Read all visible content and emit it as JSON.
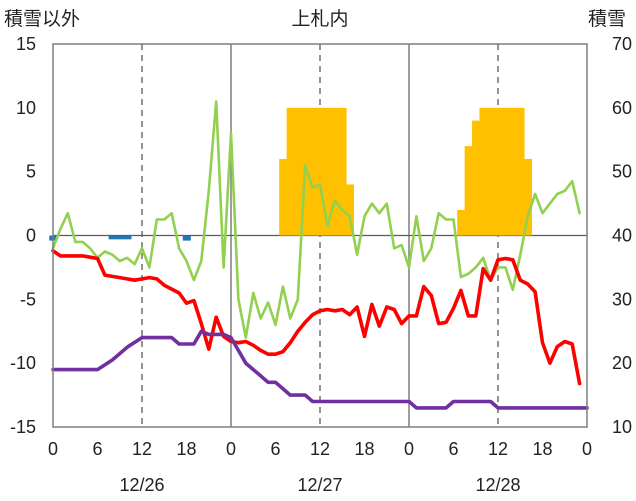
{
  "chart_data": {
    "type": "line",
    "title": "上札内",
    "left_axis": {
      "label": "積雪以外",
      "range": [
        -15,
        15
      ],
      "ticks": [
        -15,
        -10,
        -5,
        0,
        5,
        10,
        15
      ]
    },
    "right_axis": {
      "label": "積雪",
      "range": [
        10,
        70
      ],
      "ticks": [
        10,
        20,
        30,
        40,
        50,
        60,
        70
      ]
    },
    "x_axis": {
      "range_hours": [
        0,
        72
      ],
      "tick_hours": [
        0,
        6,
        12,
        18,
        24,
        30,
        36,
        42,
        48,
        54,
        60,
        66,
        72
      ],
      "tick_labels": [
        "0",
        "6",
        "12",
        "18",
        "0",
        "6",
        "12",
        "18",
        "0",
        "6",
        "12",
        "18",
        "0"
      ],
      "day_labels": [
        {
          "label": "12/26",
          "hour": 12
        },
        {
          "label": "12/27",
          "hour": 36
        },
        {
          "label": "12/28",
          "hour": 60
        }
      ]
    },
    "grid": "dashed vertical lines at hour 12, 36 and 60; solid day separators at hour 24 and 48; solid zero line",
    "series": [
      {
        "color": "#ffc000",
        "kind": "bar",
        "axis": "left",
        "points": [
          [
            0,
            -0.4
          ],
          [
            8,
            -0.3
          ],
          [
            9,
            -0.3
          ],
          [
            10,
            -0.3
          ],
          [
            18,
            -0.4
          ],
          [
            31,
            6
          ],
          [
            32,
            10
          ],
          [
            33,
            10
          ],
          [
            34,
            10
          ],
          [
            35,
            10
          ],
          [
            36,
            10
          ],
          [
            37,
            10
          ],
          [
            38,
            10
          ],
          [
            39,
            10
          ],
          [
            40,
            4
          ],
          [
            55,
            2
          ],
          [
            56,
            7
          ],
          [
            57,
            9
          ],
          [
            58,
            10
          ],
          [
            59,
            10
          ],
          [
            60,
            10
          ],
          [
            61,
            10
          ],
          [
            62,
            10
          ],
          [
            63,
            10
          ],
          [
            64,
            6
          ]
        ]
      },
      {
        "color": "#92d050",
        "kind": "line",
        "axis": "right",
        "points": [
          [
            0,
            38
          ],
          [
            1,
            41
          ],
          [
            2,
            43.5
          ],
          [
            3,
            39
          ],
          [
            4,
            39
          ],
          [
            5,
            38
          ],
          [
            6,
            36.5
          ],
          [
            7,
            37.5
          ],
          [
            8,
            37
          ],
          [
            9,
            36
          ],
          [
            10,
            36.5
          ],
          [
            11,
            35.5
          ],
          [
            12,
            38
          ],
          [
            13,
            35
          ],
          [
            14,
            42.5
          ],
          [
            15,
            42.5
          ],
          [
            16,
            43.5
          ],
          [
            17,
            38
          ],
          [
            18,
            36
          ],
          [
            19,
            33
          ],
          [
            20,
            36
          ],
          [
            21,
            47
          ],
          [
            22,
            61
          ],
          [
            23,
            35
          ],
          [
            24,
            56
          ],
          [
            25,
            30
          ],
          [
            26,
            24
          ],
          [
            27,
            31
          ],
          [
            28,
            27
          ],
          [
            29,
            29.5
          ],
          [
            30,
            26
          ],
          [
            31,
            32
          ],
          [
            32,
            27
          ],
          [
            33,
            30
          ],
          [
            34,
            51
          ],
          [
            35,
            47.5
          ],
          [
            36,
            48
          ],
          [
            37,
            41.5
          ],
          [
            38,
            45.5
          ],
          [
            39,
            44
          ],
          [
            40,
            43
          ],
          [
            41,
            37
          ],
          [
            42,
            43
          ],
          [
            43,
            45
          ],
          [
            44,
            43.5
          ],
          [
            45,
            45
          ],
          [
            46,
            38
          ],
          [
            47,
            38.5
          ],
          [
            48,
            35
          ],
          [
            49,
            43
          ],
          [
            50,
            36
          ],
          [
            51,
            38
          ],
          [
            52,
            43.5
          ],
          [
            53,
            42.5
          ],
          [
            54,
            42.5
          ],
          [
            55,
            33.5
          ],
          [
            56,
            34
          ],
          [
            57,
            35
          ],
          [
            58,
            36.5
          ],
          [
            59,
            33
          ],
          [
            60,
            35
          ],
          [
            61,
            35
          ],
          [
            62,
            31.5
          ],
          [
            63,
            37
          ],
          [
            64,
            43
          ],
          [
            65,
            46.5
          ],
          [
            66,
            43.5
          ],
          [
            67,
            45
          ],
          [
            68,
            46.5
          ],
          [
            69,
            47
          ],
          [
            70,
            48.5
          ],
          [
            71,
            43.5
          ]
        ]
      },
      {
        "color": "#ff0000",
        "kind": "line",
        "axis": "left",
        "points": [
          [
            0,
            -1.2
          ],
          [
            1,
            -1.6
          ],
          [
            2,
            -1.6
          ],
          [
            3,
            -1.6
          ],
          [
            4,
            -1.6
          ],
          [
            5,
            -1.7
          ],
          [
            6,
            -1.8
          ],
          [
            7,
            -3.1
          ],
          [
            8,
            -3.2
          ],
          [
            9,
            -3.3
          ],
          [
            10,
            -3.4
          ],
          [
            11,
            -3.5
          ],
          [
            12,
            -3.4
          ],
          [
            13,
            -3.3
          ],
          [
            14,
            -3.4
          ],
          [
            15,
            -3.9
          ],
          [
            16,
            -4.2
          ],
          [
            17,
            -4.5
          ],
          [
            18,
            -5.3
          ],
          [
            19,
            -5.1
          ],
          [
            20,
            -6.9
          ],
          [
            21,
            -8.9
          ],
          [
            22,
            -6.4
          ],
          [
            23,
            -7.9
          ],
          [
            24,
            -8.3
          ],
          [
            25,
            -8.4
          ],
          [
            26,
            -8.3
          ],
          [
            27,
            -8.6
          ],
          [
            28,
            -9
          ],
          [
            29,
            -9.3
          ],
          [
            30,
            -9.3
          ],
          [
            31,
            -9.1
          ],
          [
            32,
            -8.4
          ],
          [
            33,
            -7.5
          ],
          [
            34,
            -6.8
          ],
          [
            35,
            -6.2
          ],
          [
            36,
            -5.9
          ],
          [
            37,
            -5.8
          ],
          [
            38,
            -5.9
          ],
          [
            39,
            -5.8
          ],
          [
            40,
            -6.2
          ],
          [
            41,
            -5.6
          ],
          [
            42,
            -7.9
          ],
          [
            43,
            -5.4
          ],
          [
            44,
            -7.1
          ],
          [
            45,
            -5.6
          ],
          [
            46,
            -5.8
          ],
          [
            47,
            -6.9
          ],
          [
            48,
            -6.3
          ],
          [
            49,
            -6.3
          ],
          [
            50,
            -4
          ],
          [
            51,
            -4.7
          ],
          [
            52,
            -6.9
          ],
          [
            53,
            -6.8
          ],
          [
            54,
            -5.7
          ],
          [
            55,
            -4.3
          ],
          [
            56,
            -6.3
          ],
          [
            57,
            -6.3
          ],
          [
            58,
            -2.6
          ],
          [
            59,
            -3.5
          ],
          [
            60,
            -1.9
          ],
          [
            61,
            -1.8
          ],
          [
            62,
            -1.9
          ],
          [
            63,
            -3.5
          ],
          [
            64,
            -3.8
          ],
          [
            65,
            -4.4
          ],
          [
            66,
            -8.4
          ],
          [
            67,
            -10
          ],
          [
            68,
            -8.7
          ],
          [
            69,
            -8.3
          ],
          [
            70,
            -8.5
          ],
          [
            71,
            -11.6
          ]
        ]
      },
      {
        "color": "#7030a0",
        "kind": "line",
        "axis": "right",
        "points": [
          [
            0,
            19
          ],
          [
            6,
            19
          ],
          [
            8,
            20.5
          ],
          [
            10,
            22.5
          ],
          [
            12,
            24
          ],
          [
            16,
            24
          ],
          [
            17,
            23
          ],
          [
            19,
            23
          ],
          [
            20,
            25
          ],
          [
            21,
            24.5
          ],
          [
            23,
            24.5
          ],
          [
            24,
            24
          ],
          [
            25,
            22
          ],
          [
            26,
            20
          ],
          [
            28,
            18
          ],
          [
            29,
            17
          ],
          [
            30,
            17
          ],
          [
            32,
            15
          ],
          [
            34,
            15
          ],
          [
            35,
            14
          ],
          [
            48,
            14
          ],
          [
            49,
            13
          ],
          [
            53,
            13
          ],
          [
            54,
            14
          ],
          [
            59,
            14
          ],
          [
            60,
            13
          ],
          [
            72,
            13
          ]
        ]
      }
    ]
  }
}
